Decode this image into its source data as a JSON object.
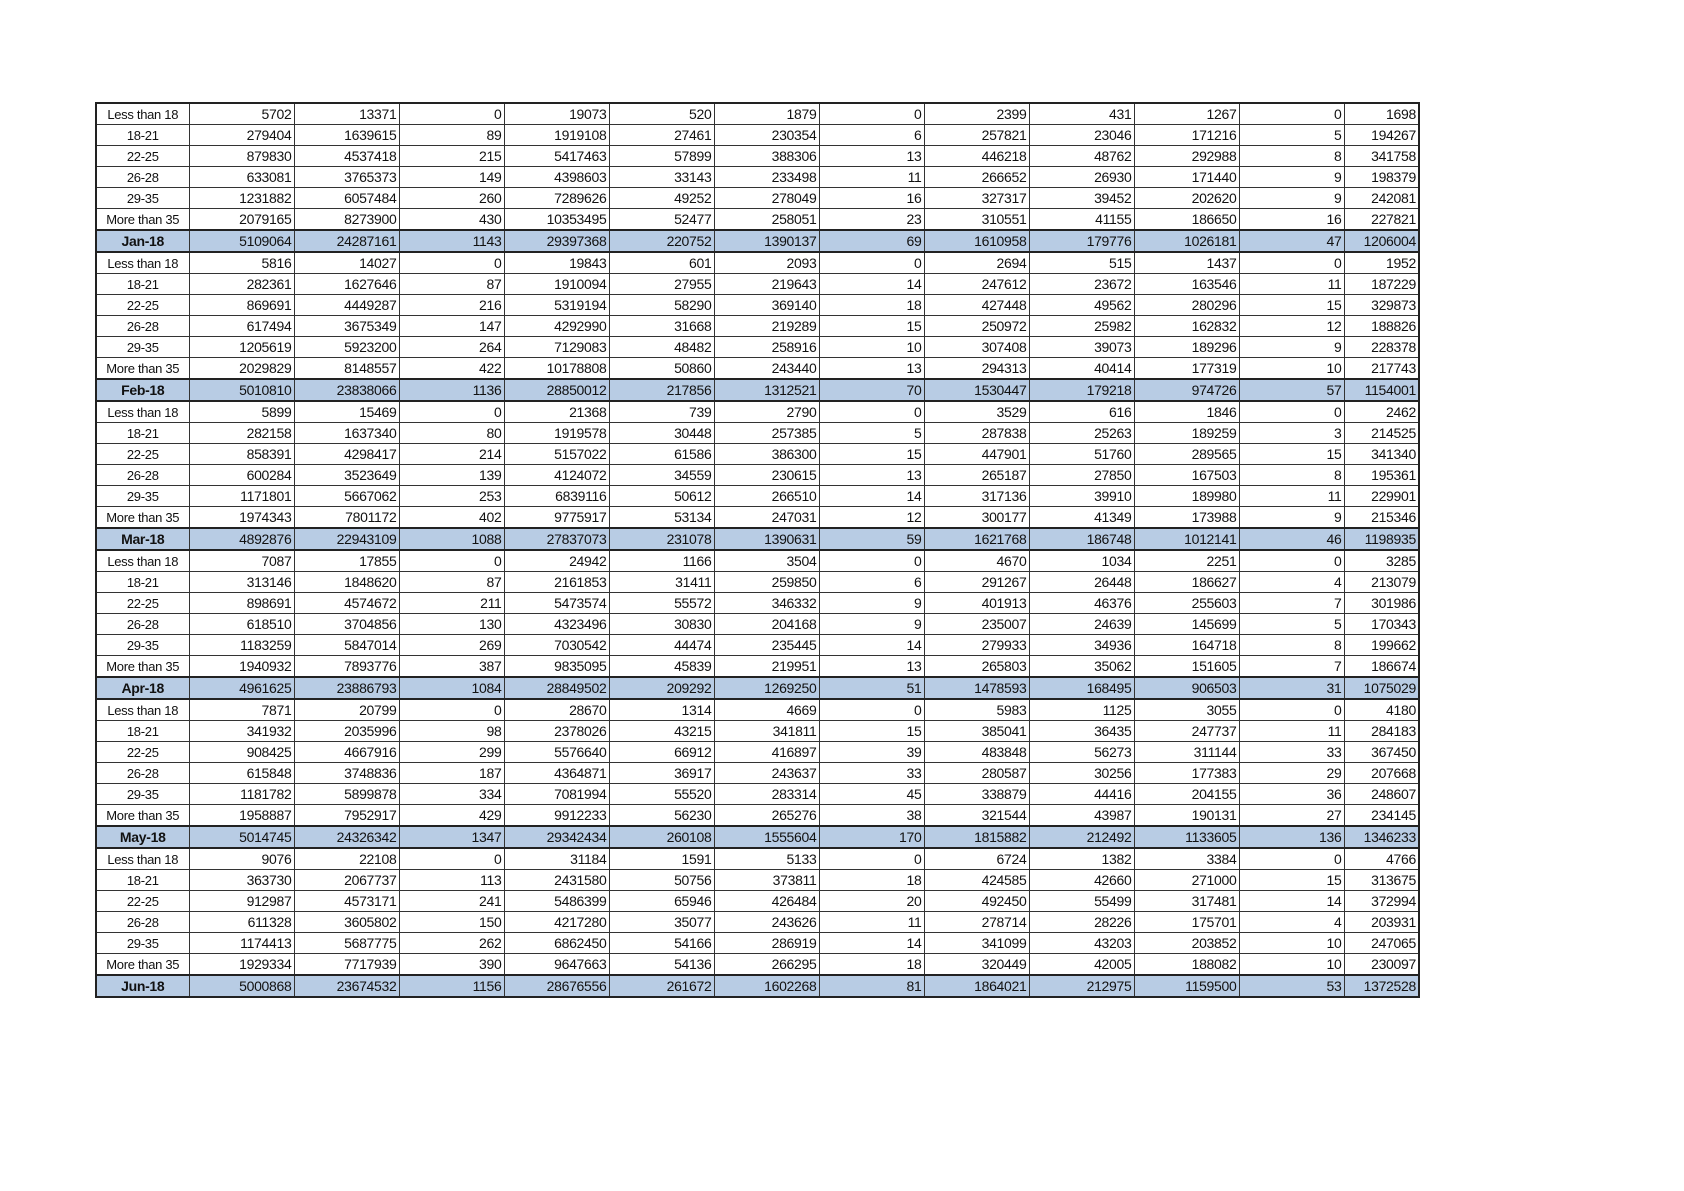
{
  "colors": {
    "total_row_fill": "#b8cce4"
  },
  "rows": [
    [
      "Less than 18",
      "5702",
      "13371",
      "0",
      "19073",
      "520",
      "1879",
      "0",
      "2399",
      "431",
      "1267",
      "0",
      "1698"
    ],
    [
      "18-21",
      "279404",
      "1639615",
      "89",
      "1919108",
      "27461",
      "230354",
      "6",
      "257821",
      "23046",
      "171216",
      "5",
      "194267"
    ],
    [
      "22-25",
      "879830",
      "4537418",
      "215",
      "5417463",
      "57899",
      "388306",
      "13",
      "446218",
      "48762",
      "292988",
      "8",
      "341758"
    ],
    [
      "26-28",
      "633081",
      "3765373",
      "149",
      "4398603",
      "33143",
      "233498",
      "11",
      "266652",
      "26930",
      "171440",
      "9",
      "198379"
    ],
    [
      "29-35",
      "1231882",
      "6057484",
      "260",
      "7289626",
      "49252",
      "278049",
      "16",
      "327317",
      "39452",
      "202620",
      "9",
      "242081"
    ],
    [
      "More than 35",
      "2079165",
      "8273900",
      "430",
      "10353495",
      "52477",
      "258051",
      "23",
      "310551",
      "41155",
      "186650",
      "16",
      "227821"
    ],
    [
      "Jan-18",
      "5109064",
      "24287161",
      "1143",
      "29397368",
      "220752",
      "1390137",
      "69",
      "1610958",
      "179776",
      "1026181",
      "47",
      "1206004"
    ],
    [
      "Less than 18",
      "5816",
      "14027",
      "0",
      "19843",
      "601",
      "2093",
      "0",
      "2694",
      "515",
      "1437",
      "0",
      "1952"
    ],
    [
      "18-21",
      "282361",
      "1627646",
      "87",
      "1910094",
      "27955",
      "219643",
      "14",
      "247612",
      "23672",
      "163546",
      "11",
      "187229"
    ],
    [
      "22-25",
      "869691",
      "4449287",
      "216",
      "5319194",
      "58290",
      "369140",
      "18",
      "427448",
      "49562",
      "280296",
      "15",
      "329873"
    ],
    [
      "26-28",
      "617494",
      "3675349",
      "147",
      "4292990",
      "31668",
      "219289",
      "15",
      "250972",
      "25982",
      "162832",
      "12",
      "188826"
    ],
    [
      "29-35",
      "1205619",
      "5923200",
      "264",
      "7129083",
      "48482",
      "258916",
      "10",
      "307408",
      "39073",
      "189296",
      "9",
      "228378"
    ],
    [
      "More than 35",
      "2029829",
      "8148557",
      "422",
      "10178808",
      "50860",
      "243440",
      "13",
      "294313",
      "40414",
      "177319",
      "10",
      "217743"
    ],
    [
      "Feb-18",
      "5010810",
      "23838066",
      "1136",
      "28850012",
      "217856",
      "1312521",
      "70",
      "1530447",
      "179218",
      "974726",
      "57",
      "1154001"
    ],
    [
      "Less than 18",
      "5899",
      "15469",
      "0",
      "21368",
      "739",
      "2790",
      "0",
      "3529",
      "616",
      "1846",
      "0",
      "2462"
    ],
    [
      "18-21",
      "282158",
      "1637340",
      "80",
      "1919578",
      "30448",
      "257385",
      "5",
      "287838",
      "25263",
      "189259",
      "3",
      "214525"
    ],
    [
      "22-25",
      "858391",
      "4298417",
      "214",
      "5157022",
      "61586",
      "386300",
      "15",
      "447901",
      "51760",
      "289565",
      "15",
      "341340"
    ],
    [
      "26-28",
      "600284",
      "3523649",
      "139",
      "4124072",
      "34559",
      "230615",
      "13",
      "265187",
      "27850",
      "167503",
      "8",
      "195361"
    ],
    [
      "29-35",
      "1171801",
      "5667062",
      "253",
      "6839116",
      "50612",
      "266510",
      "14",
      "317136",
      "39910",
      "189980",
      "11",
      "229901"
    ],
    [
      "More than 35",
      "1974343",
      "7801172",
      "402",
      "9775917",
      "53134",
      "247031",
      "12",
      "300177",
      "41349",
      "173988",
      "9",
      "215346"
    ],
    [
      "Mar-18",
      "4892876",
      "22943109",
      "1088",
      "27837073",
      "231078",
      "1390631",
      "59",
      "1621768",
      "186748",
      "1012141",
      "46",
      "1198935"
    ],
    [
      "Less than 18",
      "7087",
      "17855",
      "0",
      "24942",
      "1166",
      "3504",
      "0",
      "4670",
      "1034",
      "2251",
      "0",
      "3285"
    ],
    [
      "18-21",
      "313146",
      "1848620",
      "87",
      "2161853",
      "31411",
      "259850",
      "6",
      "291267",
      "26448",
      "186627",
      "4",
      "213079"
    ],
    [
      "22-25",
      "898691",
      "4574672",
      "211",
      "5473574",
      "55572",
      "346332",
      "9",
      "401913",
      "46376",
      "255603",
      "7",
      "301986"
    ],
    [
      "26-28",
      "618510",
      "3704856",
      "130",
      "4323496",
      "30830",
      "204168",
      "9",
      "235007",
      "24639",
      "145699",
      "5",
      "170343"
    ],
    [
      "29-35",
      "1183259",
      "5847014",
      "269",
      "7030542",
      "44474",
      "235445",
      "14",
      "279933",
      "34936",
      "164718",
      "8",
      "199662"
    ],
    [
      "More than 35",
      "1940932",
      "7893776",
      "387",
      "9835095",
      "45839",
      "219951",
      "13",
      "265803",
      "35062",
      "151605",
      "7",
      "186674"
    ],
    [
      "Apr-18",
      "4961625",
      "23886793",
      "1084",
      "28849502",
      "209292",
      "1269250",
      "51",
      "1478593",
      "168495",
      "906503",
      "31",
      "1075029"
    ],
    [
      "Less than 18",
      "7871",
      "20799",
      "0",
      "28670",
      "1314",
      "4669",
      "0",
      "5983",
      "1125",
      "3055",
      "0",
      "4180"
    ],
    [
      "18-21",
      "341932",
      "2035996",
      "98",
      "2378026",
      "43215",
      "341811",
      "15",
      "385041",
      "36435",
      "247737",
      "11",
      "284183"
    ],
    [
      "22-25",
      "908425",
      "4667916",
      "299",
      "5576640",
      "66912",
      "416897",
      "39",
      "483848",
      "56273",
      "311144",
      "33",
      "367450"
    ],
    [
      "26-28",
      "615848",
      "3748836",
      "187",
      "4364871",
      "36917",
      "243637",
      "33",
      "280587",
      "30256",
      "177383",
      "29",
      "207668"
    ],
    [
      "29-35",
      "1181782",
      "5899878",
      "334",
      "7081994",
      "55520",
      "283314",
      "45",
      "338879",
      "44416",
      "204155",
      "36",
      "248607"
    ],
    [
      "More than 35",
      "1958887",
      "7952917",
      "429",
      "9912233",
      "56230",
      "265276",
      "38",
      "321544",
      "43987",
      "190131",
      "27",
      "234145"
    ],
    [
      "May-18",
      "5014745",
      "24326342",
      "1347",
      "29342434",
      "260108",
      "1555604",
      "170",
      "1815882",
      "212492",
      "1133605",
      "136",
      "1346233"
    ],
    [
      "Less than 18",
      "9076",
      "22108",
      "0",
      "31184",
      "1591",
      "5133",
      "0",
      "6724",
      "1382",
      "3384",
      "0",
      "4766"
    ],
    [
      "18-21",
      "363730",
      "2067737",
      "113",
      "2431580",
      "50756",
      "373811",
      "18",
      "424585",
      "42660",
      "271000",
      "15",
      "313675"
    ],
    [
      "22-25",
      "912987",
      "4573171",
      "241",
      "5486399",
      "65946",
      "426484",
      "20",
      "492450",
      "55499",
      "317481",
      "14",
      "372994"
    ],
    [
      "26-28",
      "611328",
      "3605802",
      "150",
      "4217280",
      "35077",
      "243626",
      "11",
      "278714",
      "28226",
      "175701",
      "4",
      "203931"
    ],
    [
      "29-35",
      "1174413",
      "5687775",
      "262",
      "6862450",
      "54166",
      "286919",
      "14",
      "341099",
      "43203",
      "203852",
      "10",
      "247065"
    ],
    [
      "More than 35",
      "1929334",
      "7717939",
      "390",
      "9647663",
      "54136",
      "266295",
      "18",
      "320449",
      "42005",
      "188082",
      "10",
      "230097"
    ],
    [
      "Jun-18",
      "5000868",
      "23674532",
      "1156",
      "28676556",
      "261672",
      "1602268",
      "81",
      "1864021",
      "212975",
      "1159500",
      "53",
      "1372528"
    ]
  ]
}
